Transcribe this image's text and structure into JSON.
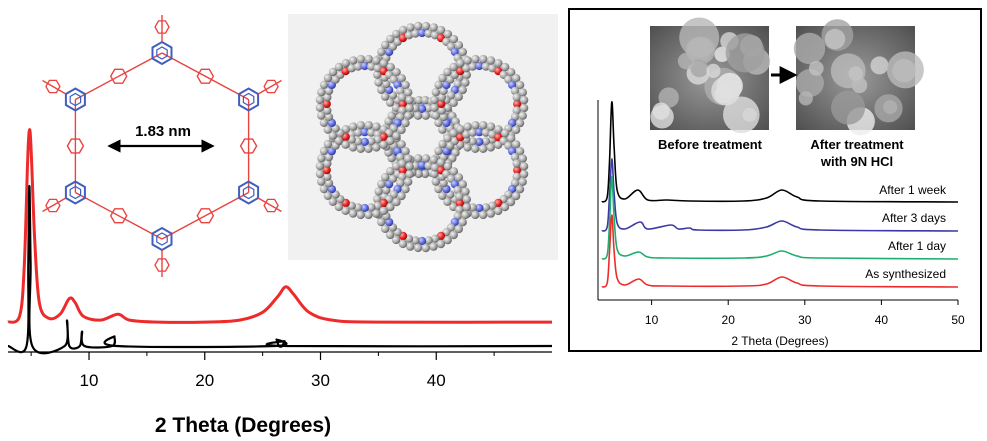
{
  "colors": {
    "red": "#ee2b2b",
    "black": "#000000",
    "blue": "#3a3aa6",
    "green": "#1fae6c",
    "linker_red": "#e8433f",
    "core_blue": "#3f5fc0"
  },
  "figure": {
    "pore_label": "1.83 nm",
    "before_label": "Before treatment",
    "after_label_line1": "After treatment",
    "after_label_line2": "with 9N HCl"
  },
  "chart_data": [
    {
      "type": "line",
      "xlabel": "2 Theta (Degrees)",
      "ylabel": "",
      "xlim": [
        3,
        50
      ],
      "ticks": [
        10,
        20,
        30,
        40
      ],
      "tick_labels": [
        "10",
        "20",
        "30",
        "40"
      ],
      "grid": false,
      "series": [
        {
          "color": "#ee2b2b",
          "points": [
            [
              3,
              0.02
            ],
            [
              4.0,
              0.05
            ],
            [
              4.4,
              0.3
            ],
            [
              4.7,
              0.85
            ],
            [
              4.85,
              1.0
            ],
            [
              5.0,
              0.9
            ],
            [
              5.3,
              0.45
            ],
            [
              5.7,
              0.12
            ],
            [
              6.5,
              0.04
            ],
            [
              7.5,
              0.06
            ],
            [
              8.3,
              0.14
            ],
            [
              8.8,
              0.12
            ],
            [
              9.5,
              0.05
            ],
            [
              11,
              0.03
            ],
            [
              12.5,
              0.06
            ],
            [
              13.5,
              0.03
            ],
            [
              16,
              0.02
            ],
            [
              20,
              0.02
            ],
            [
              23,
              0.03
            ],
            [
              25,
              0.07
            ],
            [
              26.3,
              0.15
            ],
            [
              27,
              0.2
            ],
            [
              27.7,
              0.16
            ],
            [
              29,
              0.07
            ],
            [
              31,
              0.03
            ],
            [
              35,
              0.02
            ],
            [
              50,
              0.02
            ]
          ]
        },
        {
          "color": "#000000",
          "points": [
            [
              3,
              0.0
            ],
            [
              4.6,
              0.0
            ],
            [
              4.75,
              0.52
            ],
            [
              4.85,
              1.0
            ],
            [
              4.95,
              0.52
            ],
            [
              5.1,
              0.0
            ],
            [
              7.9,
              0.0
            ],
            [
              8.1,
              0.16
            ],
            [
              8.3,
              0.0
            ],
            [
              9.2,
              0.0
            ],
            [
              9.4,
              0.09
            ],
            [
              9.6,
              0.0
            ],
            [
              12.0,
              0.0
            ],
            [
              12.2,
              0.06
            ],
            [
              12.4,
              0.0
            ],
            [
              26.0,
              0.0
            ],
            [
              26.2,
              0.04
            ],
            [
              26.4,
              0.0
            ],
            [
              26.7,
              0.0
            ],
            [
              26.9,
              0.03
            ],
            [
              27.1,
              0.0
            ],
            [
              50,
              0.0
            ]
          ]
        }
      ]
    },
    {
      "type": "line",
      "xlabel": "2 Theta (Degrees)",
      "ylabel": "",
      "xlim": [
        3,
        50
      ],
      "ticks": [
        10,
        20,
        30,
        40,
        50
      ],
      "tick_labels": [
        "10",
        "20",
        "30",
        "40",
        "50"
      ],
      "grid": false,
      "series": [
        {
          "name": "After 1 week",
          "color": "#000000",
          "points": [
            [
              3.5,
              0.0
            ],
            [
              4.2,
              0.05
            ],
            [
              4.5,
              0.4
            ],
            [
              4.8,
              1.0
            ],
            [
              5.1,
              0.55
            ],
            [
              5.5,
              0.12
            ],
            [
              6.5,
              0.03
            ],
            [
              8.2,
              0.12
            ],
            [
              9.5,
              0.02
            ],
            [
              12,
              0.02
            ],
            [
              15,
              0.01
            ],
            [
              22,
              0.01
            ],
            [
              25,
              0.04
            ],
            [
              27,
              0.12
            ],
            [
              29,
              0.05
            ],
            [
              32,
              0.01
            ],
            [
              50,
              0.0
            ]
          ]
        },
        {
          "name": "After 3 days",
          "color": "#3a3aa6",
          "points": [
            [
              3.5,
              0.0
            ],
            [
              4.2,
              0.04
            ],
            [
              4.5,
              0.35
            ],
            [
              4.8,
              0.72
            ],
            [
              5.1,
              0.38
            ],
            [
              5.5,
              0.08
            ],
            [
              6.5,
              0.02
            ],
            [
              8.5,
              0.09
            ],
            [
              9.5,
              0.02
            ],
            [
              12.5,
              0.06
            ],
            [
              13.5,
              0.02
            ],
            [
              15,
              0.03
            ],
            [
              16,
              0.01
            ],
            [
              22,
              0.01
            ],
            [
              25,
              0.04
            ],
            [
              27,
              0.1
            ],
            [
              29,
              0.04
            ],
            [
              32,
              0.01
            ],
            [
              50,
              0.0
            ]
          ]
        },
        {
          "name": "After 1 day",
          "color": "#1fae6c",
          "points": [
            [
              3.5,
              0.0
            ],
            [
              4.2,
              0.04
            ],
            [
              4.5,
              0.35
            ],
            [
              4.8,
              0.82
            ],
            [
              5.1,
              0.42
            ],
            [
              5.5,
              0.1
            ],
            [
              6.5,
              0.03
            ],
            [
              8.3,
              0.07
            ],
            [
              9.5,
              0.02
            ],
            [
              12,
              0.01
            ],
            [
              22,
              0.01
            ],
            [
              25,
              0.03
            ],
            [
              27,
              0.08
            ],
            [
              29,
              0.03
            ],
            [
              32,
              0.01
            ],
            [
              50,
              0.0
            ]
          ]
        },
        {
          "name": "As synthesized",
          "color": "#ee2b2b",
          "points": [
            [
              3.5,
              0.0
            ],
            [
              4.2,
              0.04
            ],
            [
              4.5,
              0.35
            ],
            [
              4.8,
              0.72
            ],
            [
              5.1,
              0.36
            ],
            [
              5.5,
              0.09
            ],
            [
              6.5,
              0.02
            ],
            [
              8.3,
              0.08
            ],
            [
              9.5,
              0.02
            ],
            [
              12,
              0.01
            ],
            [
              22,
              0.01
            ],
            [
              25,
              0.03
            ],
            [
              27,
              0.1
            ],
            [
              29,
              0.04
            ],
            [
              32,
              0.01
            ],
            [
              50,
              0.0
            ]
          ]
        }
      ]
    }
  ]
}
